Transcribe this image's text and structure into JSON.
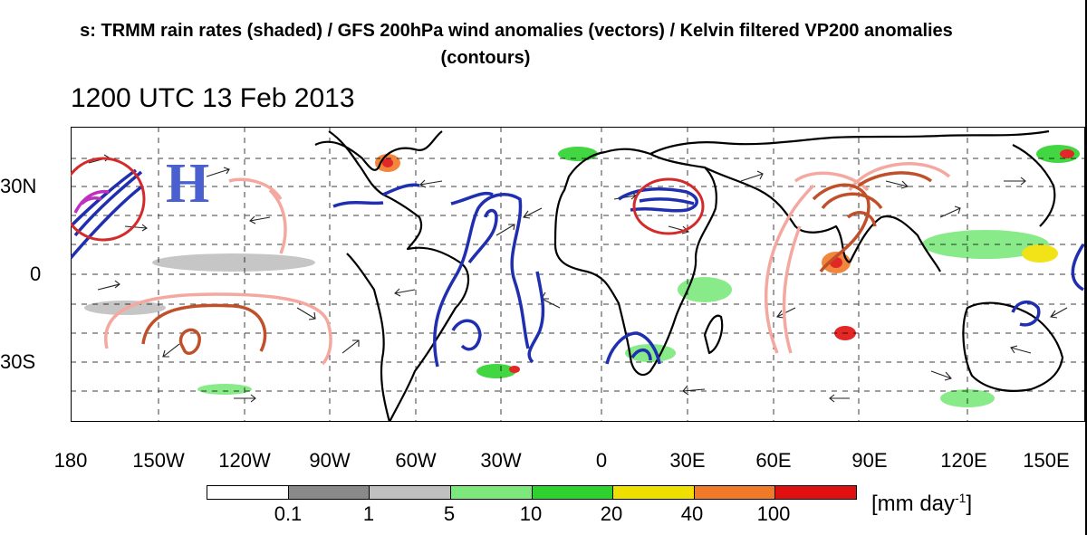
{
  "header": {
    "title_line1": "s: TRMM rain rates (shaded) / GFS 200hPa wind anomalies (vectors) / Kelvin filtered VP200 anomalies",
    "title_line2": "(contours)",
    "datetime": "1200 UTC 13 Feb 2013"
  },
  "map": {
    "lat_labels": [
      "30N",
      "0",
      "30S"
    ],
    "lon_labels": [
      "180",
      "150W",
      "120W",
      "90W",
      "60W",
      "30W",
      "0",
      "30E",
      "60E",
      "90E",
      "120E",
      "150E"
    ],
    "annotation_H": "H",
    "colors": {
      "negative_contour": "#1f2fb0",
      "positive_contour_light": "#f4a8a0",
      "positive_contour_dark": "#c0502a",
      "highlight_circle": "#d42a2a",
      "magenta_contour": "#c030c0"
    }
  },
  "colorbar": {
    "tick_labels": [
      "0.1",
      "1",
      "5",
      "10",
      "20",
      "40",
      "100"
    ],
    "units_main": "[mm day",
    "units_sup": "-1",
    "units_close": "]",
    "colors": [
      "#ffffff",
      "#8a8a8a",
      "#c0c0c0",
      "#7ce87c",
      "#2ed22e",
      "#f0e000",
      "#f07a28",
      "#e01010"
    ]
  }
}
